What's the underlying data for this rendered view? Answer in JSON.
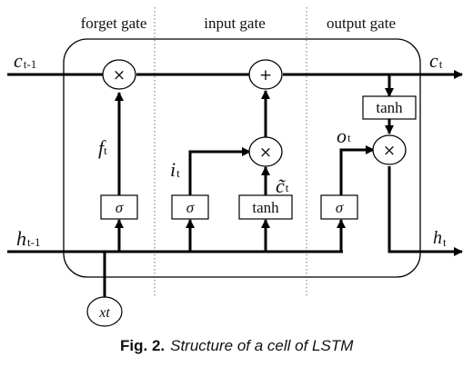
{
  "sections": {
    "forget": "forget gate",
    "input": "input gate",
    "output": "output gate"
  },
  "inputs": {
    "c_prev_main": "c",
    "c_prev_sub": "t-1",
    "h_prev_main": "h",
    "h_prev_sub": "t-1",
    "x": "xt"
  },
  "outputs": {
    "c_main": "c",
    "c_sub": "t",
    "h_main": "h",
    "h_sub": "t"
  },
  "signals": {
    "f_main": "f",
    "f_sub": "t",
    "i_main": "i",
    "i_sub": "t",
    "ctilde_main": "c̃",
    "ctilde_sub": "t",
    "o_main": "o",
    "o_sub": "t"
  },
  "blocks": {
    "sigma": "σ",
    "tanh": "tanh"
  },
  "operators": {
    "multiply": "×",
    "add": "+"
  },
  "caption": {
    "label": "Fig. 2.",
    "text": "Structure of a cell of LSTM"
  }
}
